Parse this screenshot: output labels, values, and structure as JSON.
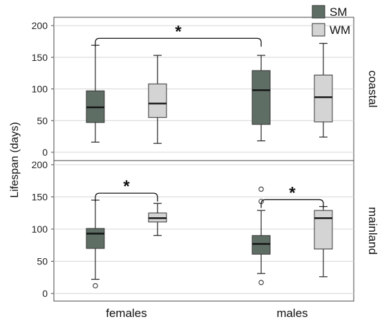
{
  "chart_data": {
    "type": "box",
    "y_label": "Lifespan (days)",
    "categories": [
      "females",
      "males"
    ],
    "legend": [
      {
        "name": "SM",
        "color": "#5f6e65"
      },
      {
        "name": "WM",
        "color": "#d4d4d4"
      }
    ],
    "y_ticks": [
      0,
      50,
      100,
      150,
      200
    ],
    "ylim": [
      0,
      200
    ],
    "grid": true,
    "legend_position": "top-right",
    "panels": [
      {
        "strip": "coastal",
        "boxes": [
          {
            "category": "females",
            "series": "SM",
            "min": 16,
            "q1": 47,
            "median": 71,
            "q3": 97,
            "max": 169,
            "outliers": []
          },
          {
            "category": "females",
            "series": "WM",
            "min": 14,
            "q1": 55,
            "median": 77,
            "q3": 108,
            "max": 153,
            "outliers": []
          },
          {
            "category": "males",
            "series": "SM",
            "min": 18,
            "q1": 44,
            "median": 98,
            "q3": 129,
            "max": 153,
            "outliers": []
          },
          {
            "category": "males",
            "series": "WM",
            "min": 24,
            "q1": 48,
            "median": 87,
            "q3": 122,
            "max": 172,
            "outliers": []
          }
        ],
        "significance": [
          {
            "from": "females|SM",
            "to": "males|SM",
            "label": "*"
          }
        ]
      },
      {
        "strip": "mainland",
        "boxes": [
          {
            "category": "females",
            "series": "SM",
            "min": 22,
            "q1": 70,
            "median": 93,
            "q3": 101,
            "max": 145,
            "outliers": [
              12
            ]
          },
          {
            "category": "females",
            "series": "WM",
            "min": 90,
            "q1": 111,
            "median": 117,
            "q3": 125,
            "max": 140,
            "outliers": []
          },
          {
            "category": "males",
            "series": "SM",
            "min": 31,
            "q1": 61,
            "median": 77,
            "q3": 90,
            "max": 129,
            "outliers": [
              17,
              143,
              162
            ]
          },
          {
            "category": "males",
            "series": "WM",
            "min": 26,
            "q1": 69,
            "median": 117,
            "q3": 129,
            "max": 135,
            "outliers": []
          }
        ],
        "significance": [
          {
            "from": "females|SM",
            "to": "females|WM",
            "label": "*"
          },
          {
            "from": "males|SM",
            "to": "males|WM",
            "label": "*"
          }
        ]
      }
    ]
  }
}
